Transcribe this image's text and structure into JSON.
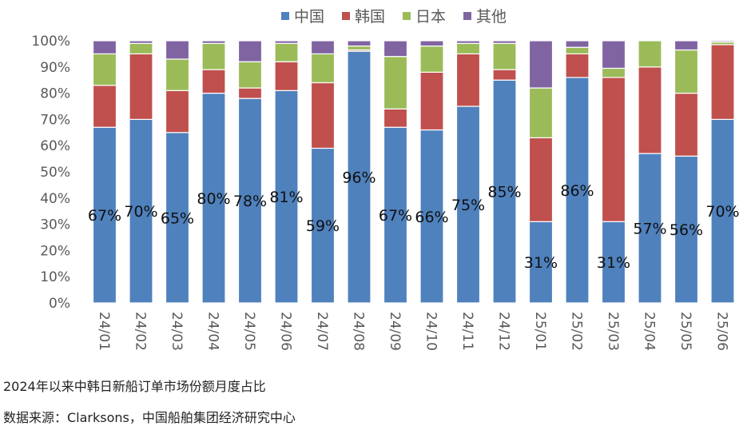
{
  "chart_data": {
    "type": "bar",
    "stacked": true,
    "title": "",
    "xlabel": "",
    "ylabel": "",
    "ylim": [
      0,
      100
    ],
    "yticks": [
      "0%",
      "10%",
      "20%",
      "30%",
      "40%",
      "50%",
      "60%",
      "70%",
      "80%",
      "90%",
      "100%"
    ],
    "categories": [
      "24/01",
      "24/02",
      "24/03",
      "24/04",
      "24/05",
      "24/06",
      "24/07",
      "24/08",
      "24/09",
      "24/10",
      "24/11",
      "24/12",
      "25/01",
      "25/02",
      "25/03",
      "25/04",
      "25/05",
      "25/06"
    ],
    "series": [
      {
        "name": "中国",
        "color": "#4F81BD",
        "values": [
          67,
          70,
          65,
          80,
          78,
          81,
          59,
          96,
          67,
          66,
          75,
          85,
          31,
          86,
          31,
          57,
          56,
          70
        ]
      },
      {
        "name": "韩国",
        "color": "#C0504D",
        "values": [
          16,
          25,
          16,
          9,
          4,
          11,
          25,
          0.5,
          7,
          22,
          20,
          4,
          32,
          9,
          55,
          33,
          24,
          28.5
        ]
      },
      {
        "name": "日本",
        "color": "#9BBB59",
        "values": [
          12,
          4,
          12,
          10,
          10,
          7,
          11,
          1.5,
          20,
          10,
          4,
          10,
          19,
          2.5,
          3.5,
          10,
          16.5,
          1
        ]
      },
      {
        "name": "其他",
        "color": "#8064A2",
        "values": [
          5,
          1,
          7,
          1,
          8,
          1,
          5,
          2,
          6,
          2,
          1,
          1,
          18,
          2.5,
          10.5,
          0,
          3.5,
          0.5
        ]
      }
    ],
    "data_labels": [
      "67%",
      "70%",
      "65%",
      "80%",
      "78%",
      "81%",
      "59%",
      "96%",
      "67%",
      "66%",
      "75%",
      "85%",
      "31%",
      "86%",
      "31%",
      "57%",
      "56%",
      "70%"
    ],
    "legend_position": "top-center"
  },
  "caption": {
    "title": "2024年以来中韩日新船订单市场份额月度占比",
    "source": "数据来源：Clarksons，中国船舶集团经济研究中心"
  }
}
